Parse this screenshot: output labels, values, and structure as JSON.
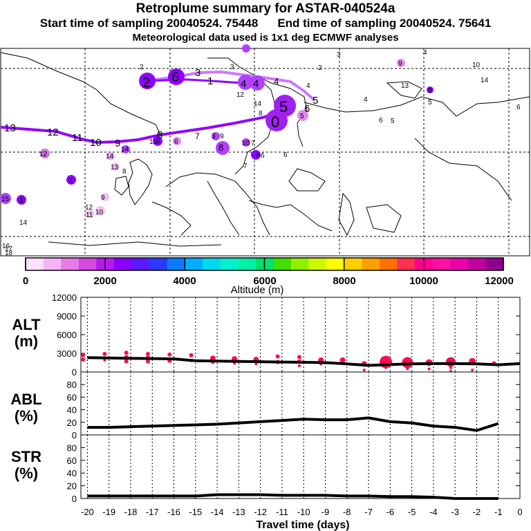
{
  "title": "Retroplume summary for ASTAR-040524a",
  "subtitle_start": "Start time of sampling 20040524. 75448",
  "subtitle_end": "End time of sampling 20040524. 75641",
  "subtitle_met": "Meteorological data used is 1x1 deg ECMWF analyses",
  "colorbar": {
    "label": "Altitude (m)",
    "tick_labels": [
      "0",
      "2000",
      "4000",
      "6000",
      "8000",
      "10000",
      "12000"
    ],
    "range": [
      0,
      12000
    ],
    "colors": [
      "#fde0fd",
      "#f5b5f5",
      "#ea7aea",
      "#d748e0",
      "#b818f0",
      "#8a00ff",
      "#5a1aff",
      "#2a3aff",
      "#0a7aff",
      "#00b0ff",
      "#00d8f0",
      "#00f0d0",
      "#00f0a8",
      "#00e070",
      "#40e000",
      "#90f000",
      "#d0f800",
      "#ffff00",
      "#ffd000",
      "#ffa000",
      "#ff7000",
      "#ff3050",
      "#ff0090",
      "#ff10a0",
      "#e800a8",
      "#c000a0",
      "#900090"
    ]
  },
  "map": {
    "main_color": "#9000ff",
    "branch_color": "#cc77ff",
    "main_path_labels": [
      "13",
      "12",
      "11",
      "10",
      "9",
      "8",
      "7",
      "6",
      "5"
    ],
    "branch_path_labels": [
      "2",
      "6",
      "3",
      "1",
      "4",
      "4",
      "4",
      "5"
    ],
    "release_label": "0",
    "scattered_labels": [
      "3",
      "4",
      "2",
      "3",
      "2",
      "4",
      "9",
      "10",
      "14",
      "13",
      "9",
      "5",
      "12",
      "14",
      "4",
      "6",
      "6",
      "5",
      "8",
      "12",
      "14",
      "13",
      "8",
      "6",
      "8",
      "9",
      "14",
      "9",
      "6",
      "3",
      "7",
      "5",
      "6",
      "7",
      "15",
      "10",
      "6",
      "9",
      "10",
      "6",
      "13",
      "9",
      "12",
      "11",
      "14",
      "16",
      "17",
      "18"
    ]
  },
  "chart_data": [
    {
      "type": "line",
      "name": "ALT",
      "ylabel": "ALT\n(m)",
      "ylabel_line1": "ALT",
      "ylabel_line2": "(m)",
      "ylim": [
        0,
        12000
      ],
      "yticks": [
        0,
        3000,
        6000,
        9000,
        12000
      ],
      "x": [
        -20,
        -19,
        -18,
        -17,
        -16,
        -15,
        -14,
        -13,
        -12,
        -11,
        -10,
        -9,
        -8,
        -7,
        -6,
        -5,
        -4,
        -3,
        -2,
        -1,
        0
      ],
      "values": [
        2300,
        2250,
        2200,
        2150,
        2100,
        1800,
        1750,
        1700,
        1650,
        1600,
        1550,
        1500,
        1300,
        1050,
        1200,
        1300,
        1350,
        1350,
        1300,
        1150,
        1350
      ],
      "markers": [
        {
          "x": -20.2,
          "y": 2700,
          "size": 3
        },
        {
          "x": -20.2,
          "y": 2000,
          "size": 3
        },
        {
          "x": -19.2,
          "y": 2900,
          "size": 3
        },
        {
          "x": -19.2,
          "y": 1900,
          "size": 2
        },
        {
          "x": -18.2,
          "y": 3100,
          "size": 3
        },
        {
          "x": -18.2,
          "y": 2400,
          "size": 3
        },
        {
          "x": -18.2,
          "y": 1700,
          "size": 3
        },
        {
          "x": -17.2,
          "y": 2900,
          "size": 3
        },
        {
          "x": -17.2,
          "y": 2300,
          "size": 3
        },
        {
          "x": -17.2,
          "y": 1700,
          "size": 3
        },
        {
          "x": -16.2,
          "y": 2800,
          "size": 3
        },
        {
          "x": -16.2,
          "y": 1800,
          "size": 3
        },
        {
          "x": -15.2,
          "y": 2700,
          "size": 3
        },
        {
          "x": -15.2,
          "y": 1800,
          "size": 2
        },
        {
          "x": -14.2,
          "y": 2200,
          "size": 4
        },
        {
          "x": -14.2,
          "y": 1500,
          "size": 2
        },
        {
          "x": -13.2,
          "y": 2100,
          "size": 4
        },
        {
          "x": -13.2,
          "y": 1400,
          "size": 2
        },
        {
          "x": -12.2,
          "y": 2000,
          "size": 4
        },
        {
          "x": -12.2,
          "y": 1300,
          "size": 2
        },
        {
          "x": -11.2,
          "y": 2500,
          "size": 3
        },
        {
          "x": -11.2,
          "y": 1600,
          "size": 3
        },
        {
          "x": -10.2,
          "y": 2400,
          "size": 3
        },
        {
          "x": -10.2,
          "y": 1700,
          "size": 3
        },
        {
          "x": -10.2,
          "y": 1000,
          "size": 2
        },
        {
          "x": -9.2,
          "y": 1900,
          "size": 4
        },
        {
          "x": -9.2,
          "y": 1300,
          "size": 2
        },
        {
          "x": -8.2,
          "y": 1900,
          "size": 4
        },
        {
          "x": -7.2,
          "y": 1300,
          "size": 4
        },
        {
          "x": -7.2,
          "y": 300,
          "size": 2
        },
        {
          "x": -6.2,
          "y": 1600,
          "size": 9
        },
        {
          "x": -6.2,
          "y": 700,
          "size": 2
        },
        {
          "x": -5.2,
          "y": 1500,
          "size": 8
        },
        {
          "x": -5.2,
          "y": 500,
          "size": 2
        },
        {
          "x": -4.2,
          "y": 1500,
          "size": 5
        },
        {
          "x": -4.2,
          "y": 500,
          "size": 2
        },
        {
          "x": -3.2,
          "y": 1600,
          "size": 7
        },
        {
          "x": -3.2,
          "y": 700,
          "size": 2
        },
        {
          "x": -3.2,
          "y": 100,
          "size": 2
        },
        {
          "x": -2.2,
          "y": 1700,
          "size": 5
        },
        {
          "x": -2.2,
          "y": 300,
          "size": 2
        },
        {
          "x": -1.2,
          "y": 1400,
          "size": 3
        }
      ]
    },
    {
      "type": "line",
      "name": "ABL",
      "ylabel": "ABL\n(%)",
      "ylabel_line1": "ABL",
      "ylabel_line2": "(%)",
      "ylim": [
        0,
        100
      ],
      "yticks": [
        0,
        20,
        40,
        60,
        80
      ],
      "x": [
        -20,
        -19,
        -18,
        -17,
        -16,
        -15,
        -14,
        -13,
        -12,
        -11,
        -10,
        -9,
        -8,
        -7,
        -6,
        -5,
        -4,
        -3,
        -2,
        -1
      ],
      "values": [
        12,
        12,
        13,
        14,
        15,
        16,
        17,
        19,
        21,
        23,
        25,
        24,
        24,
        27,
        21,
        19,
        14,
        12,
        7,
        18
      ]
    },
    {
      "type": "line",
      "name": "STR",
      "ylabel": "STR\n(%)",
      "ylabel_line1": "STR",
      "ylabel_line2": "(%)",
      "ylim": [
        0,
        100
      ],
      "yticks": [
        0,
        20,
        40,
        60,
        80
      ],
      "x": [
        -20,
        -19,
        -18,
        -17,
        -16,
        -15,
        -14,
        -13,
        -12,
        -11,
        -10,
        -9,
        -8,
        -7,
        -6,
        -5,
        -4,
        -3,
        -2,
        -1
      ],
      "values": [
        4,
        4,
        4,
        4,
        4,
        4,
        6,
        6,
        6,
        5,
        5,
        5,
        4,
        4,
        3,
        3,
        2,
        0,
        0,
        0
      ]
    }
  ],
  "xaxis": {
    "label": "Travel time (days)",
    "ticks": [
      -20,
      -19,
      -18,
      -17,
      -16,
      -15,
      -14,
      -13,
      -12,
      -11,
      -10,
      -9,
      -8,
      -7,
      -6,
      -5,
      -4,
      -3,
      -2,
      -1,
      0
    ],
    "tick_labels": [
      "-20",
      "-19",
      "-18",
      "-17",
      "-16",
      "-15",
      "-14",
      "-13",
      "-12",
      "-11",
      "-10",
      "-9",
      "-8",
      "-7",
      "-6",
      "-5",
      "-4",
      "-3",
      "-2",
      "-1",
      "0"
    ]
  },
  "colors": {
    "line": "#000000",
    "marker": "#ff0a50",
    "grid": "#000000"
  }
}
